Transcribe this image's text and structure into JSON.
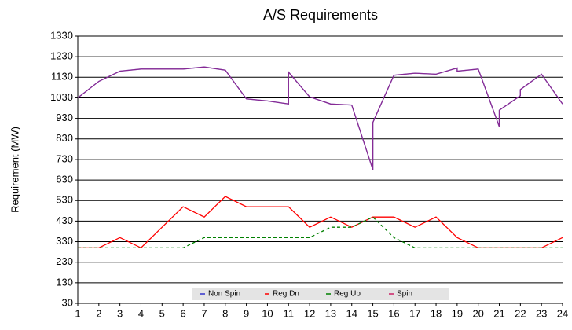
{
  "chart_data": {
    "type": "line",
    "title": "A/S Requirements",
    "y_label": "Requirement (MW)",
    "xlim": [
      1,
      24
    ],
    "xticks": [
      1,
      2,
      3,
      4,
      5,
      6,
      7,
      8,
      9,
      10,
      11,
      12,
      13,
      14,
      15,
      16,
      17,
      18,
      19,
      20,
      21,
      22,
      23,
      24
    ],
    "ylim": [
      30,
      1330
    ],
    "yticks": [
      30,
      130,
      230,
      330,
      430,
      530,
      630,
      730,
      830,
      930,
      1030,
      1130,
      1230,
      1330
    ],
    "grid": true,
    "legend": "bottom",
    "series": [
      {
        "name": "Non Spin",
        "color": "#3333cc",
        "dash": false,
        "x": [
          1,
          2,
          3,
          4,
          5,
          6,
          7,
          8,
          9,
          10,
          11,
          11,
          12,
          13,
          14,
          15,
          15,
          16,
          17,
          18,
          19,
          19,
          20,
          21,
          21,
          22,
          22,
          23,
          24
        ],
        "values": [
          1030,
          1110,
          1160,
          1170,
          1170,
          1170,
          1180,
          1165,
          1025,
          1015,
          1000,
          1155,
          1035,
          1000,
          995,
          680,
          910,
          1140,
          1150,
          1145,
          1175,
          1160,
          1170,
          890,
          970,
          1040,
          1070,
          1145,
          1000
        ]
      },
      {
        "name": "Reg Dn",
        "color": "#ff0000",
        "dash": false,
        "x": [
          1,
          2,
          3,
          4,
          5,
          6,
          7,
          8,
          9,
          10,
          11,
          12,
          13,
          14,
          15,
          16,
          17,
          18,
          19,
          20,
          21,
          22,
          23,
          24
        ],
        "values": [
          300,
          300,
          350,
          300,
          400,
          500,
          450,
          550,
          500,
          500,
          500,
          400,
          450,
          400,
          450,
          450,
          400,
          450,
          350,
          300,
          300,
          300,
          300,
          350
        ]
      },
      {
        "name": "Reg Up",
        "color": "#008000",
        "dash": true,
        "x": [
          1,
          2,
          3,
          4,
          5,
          6,
          7,
          8,
          9,
          10,
          11,
          12,
          13,
          14,
          15,
          16,
          17,
          18,
          19,
          20,
          21,
          22,
          23,
          24
        ],
        "values": [
          300,
          300,
          300,
          300,
          300,
          300,
          350,
          350,
          350,
          350,
          350,
          350,
          400,
          400,
          450,
          350,
          300,
          300,
          300,
          300,
          300,
          300,
          300,
          300
        ]
      },
      {
        "name": "Spin",
        "color": "#cc2266",
        "dash": false,
        "x": [
          1,
          2,
          3,
          4,
          5,
          6,
          7,
          8,
          9,
          10,
          11,
          11,
          12,
          13,
          14,
          15,
          15,
          16,
          17,
          18,
          19,
          19,
          20,
          21,
          21,
          22,
          22,
          23,
          24
        ],
        "values": [
          1030,
          1110,
          1160,
          1170,
          1170,
          1170,
          1180,
          1165,
          1025,
          1015,
          1000,
          1155,
          1035,
          1000,
          995,
          680,
          910,
          1140,
          1150,
          1145,
          1175,
          1160,
          1170,
          890,
          970,
          1040,
          1070,
          1145,
          1000
        ]
      }
    ]
  }
}
